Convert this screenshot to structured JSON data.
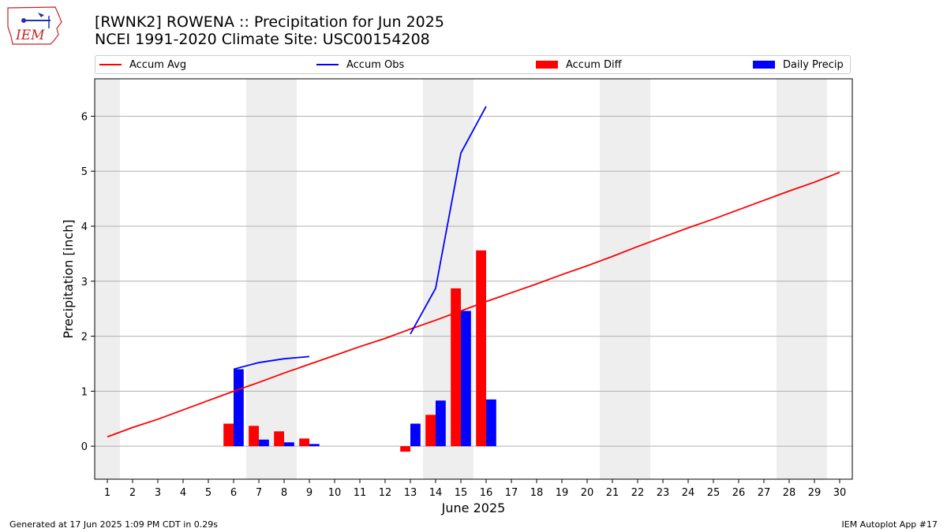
{
  "header": {
    "title_line1": "[RWNK2] ROWENA :: Precipitation for Jun 2025",
    "title_line2": "NCEI 1991-2020 Climate Site: USC00154208"
  },
  "logo": {
    "text": "IEM",
    "icon": "iem-iowa-logo",
    "color": "#cc2222"
  },
  "footer": {
    "left": "Generated at 17 Jun 2025 1:09 PM CDT in 0.29s",
    "right": "IEM Autoplot App #17"
  },
  "legend": {
    "items": [
      {
        "label": "Accum Avg",
        "kind": "line",
        "color": "#ff0000"
      },
      {
        "label": "Accum Obs",
        "kind": "line",
        "color": "#0000ff"
      },
      {
        "label": "Accum Diff",
        "kind": "bar",
        "color": "#ff0000"
      },
      {
        "label": "Daily Precip",
        "kind": "bar",
        "color": "#0000ff"
      }
    ]
  },
  "chart_data": {
    "type": "bar",
    "xlabel": "June 2025",
    "ylabel": "Precipitation [inch]",
    "xlim": [
      0.5,
      30.5
    ],
    "ylim": [
      -0.6,
      6.68
    ],
    "x_ticks": [
      1,
      2,
      3,
      4,
      5,
      6,
      7,
      8,
      9,
      10,
      11,
      12,
      13,
      14,
      15,
      16,
      17,
      18,
      19,
      20,
      21,
      22,
      23,
      24,
      25,
      26,
      27,
      28,
      29,
      30
    ],
    "y_ticks": [
      0,
      1,
      2,
      3,
      4,
      5,
      6
    ],
    "grid": "horizontal",
    "weekend_shading": [
      [
        0.5,
        1.5
      ],
      [
        6.5,
        8.5
      ],
      [
        13.5,
        15.5
      ],
      [
        20.5,
        22.5
      ],
      [
        27.5,
        29.5
      ]
    ],
    "weekend_color": "#eeeeee",
    "series": [
      {
        "name": "Accum Avg",
        "kind": "line",
        "color": "#ff0000",
        "x": [
          1,
          2,
          3,
          4,
          5,
          6,
          7,
          8,
          9,
          10,
          11,
          12,
          13,
          14,
          15,
          16,
          17,
          18,
          19,
          20,
          21,
          22,
          23,
          24,
          25,
          26,
          27,
          28,
          29,
          30
        ],
        "values": [
          0.17,
          0.34,
          0.49,
          0.66,
          0.83,
          1.0,
          1.16,
          1.33,
          1.49,
          1.65,
          1.81,
          1.96,
          2.13,
          2.29,
          2.46,
          2.63,
          2.79,
          2.95,
          3.12,
          3.28,
          3.45,
          3.63,
          3.8,
          3.97,
          4.13,
          4.3,
          4.47,
          4.64,
          4.8,
          4.98
        ]
      },
      {
        "name": "Accum Obs",
        "kind": "line",
        "color": "#0000ff",
        "segments": [
          {
            "x": [
              6,
              7,
              8,
              9
            ],
            "values": [
              1.4,
              1.52,
              1.59,
              1.63
            ]
          },
          {
            "x": [
              13,
              14,
              15,
              16
            ],
            "values": [
              2.04,
              2.87,
              5.33,
              6.18
            ]
          }
        ]
      },
      {
        "name": "Accum Diff",
        "kind": "bar",
        "color": "#ff0000",
        "x": [
          6,
          7,
          8,
          9,
          13,
          14,
          15,
          16
        ],
        "values": [
          0.41,
          0.37,
          0.27,
          0.14,
          -0.1,
          0.57,
          2.87,
          3.56
        ]
      },
      {
        "name": "Daily Precip",
        "kind": "bar",
        "color": "#0000ff",
        "x": [
          6,
          7,
          8,
          9,
          13,
          14,
          15,
          16
        ],
        "values": [
          1.4,
          0.12,
          0.07,
          0.04,
          0.41,
          0.83,
          2.46,
          0.85
        ]
      }
    ]
  }
}
